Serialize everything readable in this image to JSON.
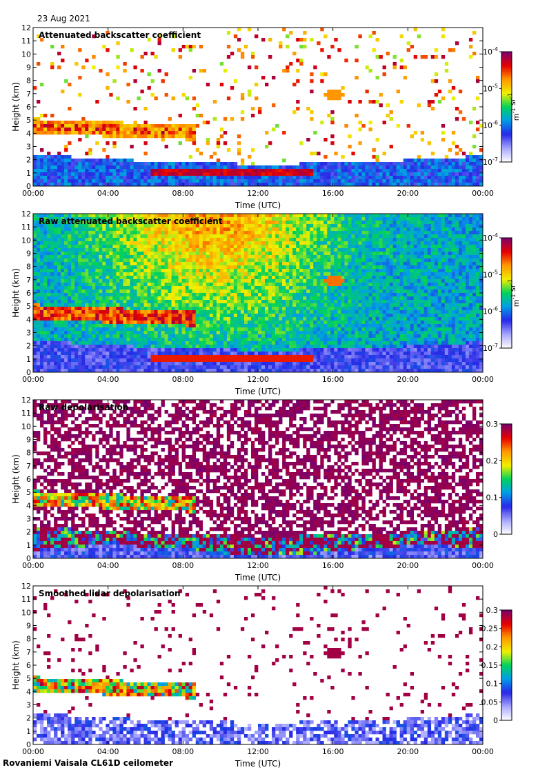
{
  "date": "23 Aug 2021",
  "footer": "Rovaniemi Vaisala CL61D ceilometer",
  "chart_data": [
    {
      "type": "heatmap",
      "title": "Attenuated backscatter coefficient",
      "xlabel": "Time (UTC)",
      "ylabel": "Height (km)",
      "x_ticks": [
        "00:00",
        "04:00",
        "08:00",
        "12:00",
        "16:00",
        "20:00",
        "00:00"
      ],
      "y_ticks": [
        "0",
        "1",
        "2",
        "3",
        "4",
        "5",
        "6",
        "7",
        "8",
        "9",
        "10",
        "11",
        "12"
      ],
      "ylim": [
        0,
        12
      ],
      "colorbar": {
        "scale": "log",
        "range": [
          1e-07,
          0.0001
        ],
        "ticks": [
          "10-7",
          "10-6",
          "10-5",
          "10-4"
        ],
        "unit": "m-1 sr-1"
      }
    },
    {
      "type": "heatmap",
      "title": "Raw attenuated backscatter coefficient",
      "xlabel": "Time (UTC)",
      "ylabel": "Height (km)",
      "x_ticks": [
        "00:00",
        "04:00",
        "08:00",
        "12:00",
        "16:00",
        "20:00",
        "00:00"
      ],
      "y_ticks": [
        "0",
        "1",
        "2",
        "3",
        "4",
        "5",
        "6",
        "7",
        "8",
        "9",
        "10",
        "11",
        "12"
      ],
      "ylim": [
        0,
        12
      ],
      "colorbar": {
        "scale": "log",
        "range": [
          1e-07,
          0.0001
        ],
        "ticks": [
          "10-7",
          "10-6",
          "10-5",
          "10-4"
        ],
        "unit": "m-1 sr-1"
      }
    },
    {
      "type": "heatmap",
      "title": "Raw depolarisation",
      "xlabel": "Time (UTC)",
      "ylabel": "Height (km)",
      "x_ticks": [
        "00:00",
        "04:00",
        "08:00",
        "12:00",
        "16:00",
        "20:00",
        "00:00"
      ],
      "y_ticks": [
        "0",
        "1",
        "2",
        "3",
        "4",
        "5",
        "6",
        "7",
        "8",
        "9",
        "10",
        "11",
        "12"
      ],
      "ylim": [
        0,
        12
      ],
      "colorbar": {
        "scale": "linear",
        "range": [
          0,
          0.3
        ],
        "ticks": [
          "0",
          "0.1",
          "0.2",
          "0.3"
        ],
        "unit": ""
      }
    },
    {
      "type": "heatmap",
      "title": "Smoothed lidar depolarisation",
      "xlabel": "Time (UTC)",
      "ylabel": "Height (km)",
      "x_ticks": [
        "00:00",
        "04:00",
        "08:00",
        "12:00",
        "16:00",
        "20:00",
        "00:00"
      ],
      "y_ticks": [
        "0",
        "1",
        "2",
        "3",
        "4",
        "5",
        "6",
        "7",
        "8",
        "9",
        "10",
        "11",
        "12"
      ],
      "ylim": [
        0,
        12
      ],
      "colorbar": {
        "scale": "linear",
        "range": [
          0,
          0.3
        ],
        "ticks": [
          "0",
          "0.05",
          "0.1",
          "0.15",
          "0.2",
          "0.25",
          "0.3"
        ],
        "unit": ""
      }
    }
  ]
}
